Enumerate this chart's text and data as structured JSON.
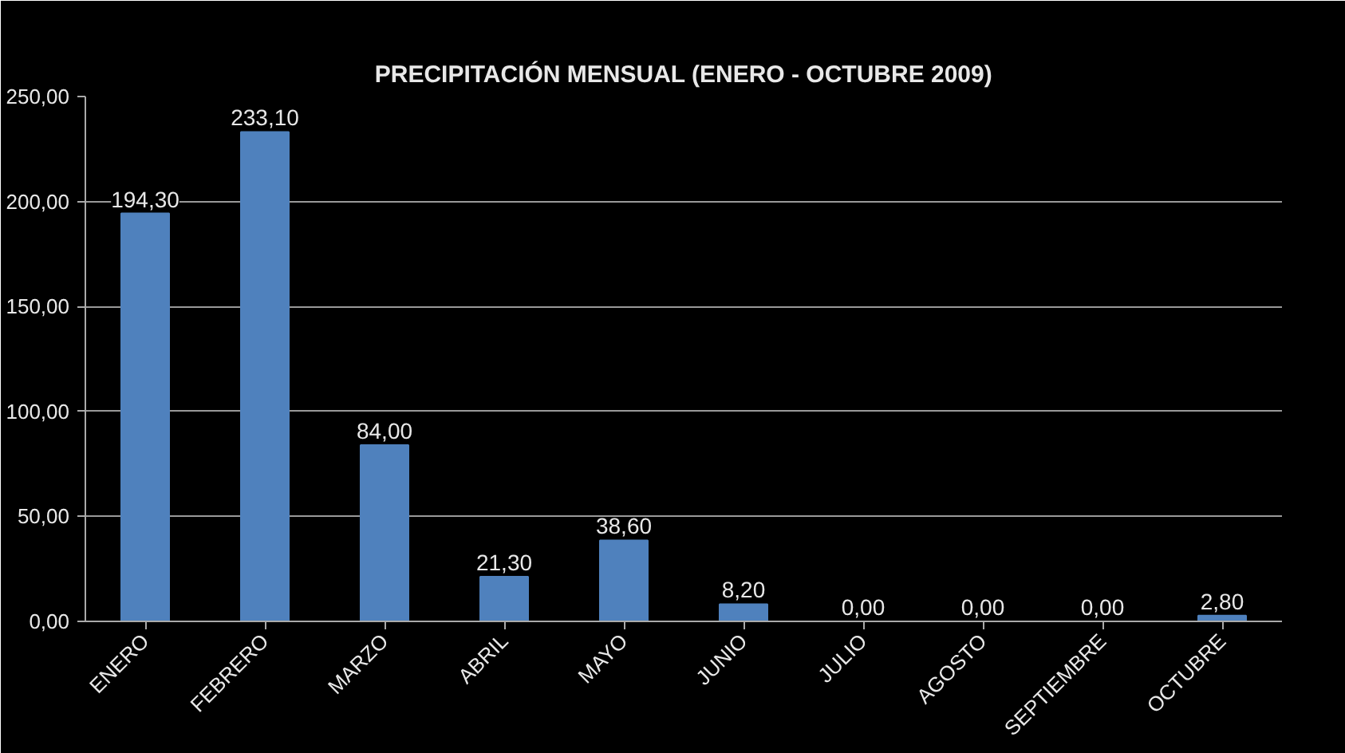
{
  "chart_data": {
    "type": "bar",
    "title": "PRECIPITACIÓN MENSUAL (ENERO - OCTUBRE 2009)",
    "categories": [
      "ENERO",
      "FEBRERO",
      "MARZO",
      "ABRIL",
      "MAYO",
      "JUNIO",
      "JULIO",
      "AGOSTO",
      "SEPTIEMBRE",
      "OCTUBRE"
    ],
    "values": [
      194.3,
      233.1,
      84.0,
      21.3,
      38.6,
      8.2,
      0.0,
      0.0,
      0.0,
      2.8
    ],
    "value_labels": [
      "194,30",
      "233,10",
      "84,00",
      "21,30",
      "38,60",
      "8,20",
      "0,00",
      "0,00",
      "0,00",
      "2,80"
    ],
    "color": "#4f81bd",
    "ylim": [
      0,
      250
    ],
    "yticks": [
      {
        "value": 0,
        "label": "0,00"
      },
      {
        "value": 50,
        "label": "50,00"
      },
      {
        "value": 100,
        "label": "100,00"
      },
      {
        "value": 150,
        "label": "150,00"
      },
      {
        "value": 200,
        "label": "200,00"
      },
      {
        "value": 250,
        "label": "250,00"
      }
    ],
    "grid": "y"
  }
}
